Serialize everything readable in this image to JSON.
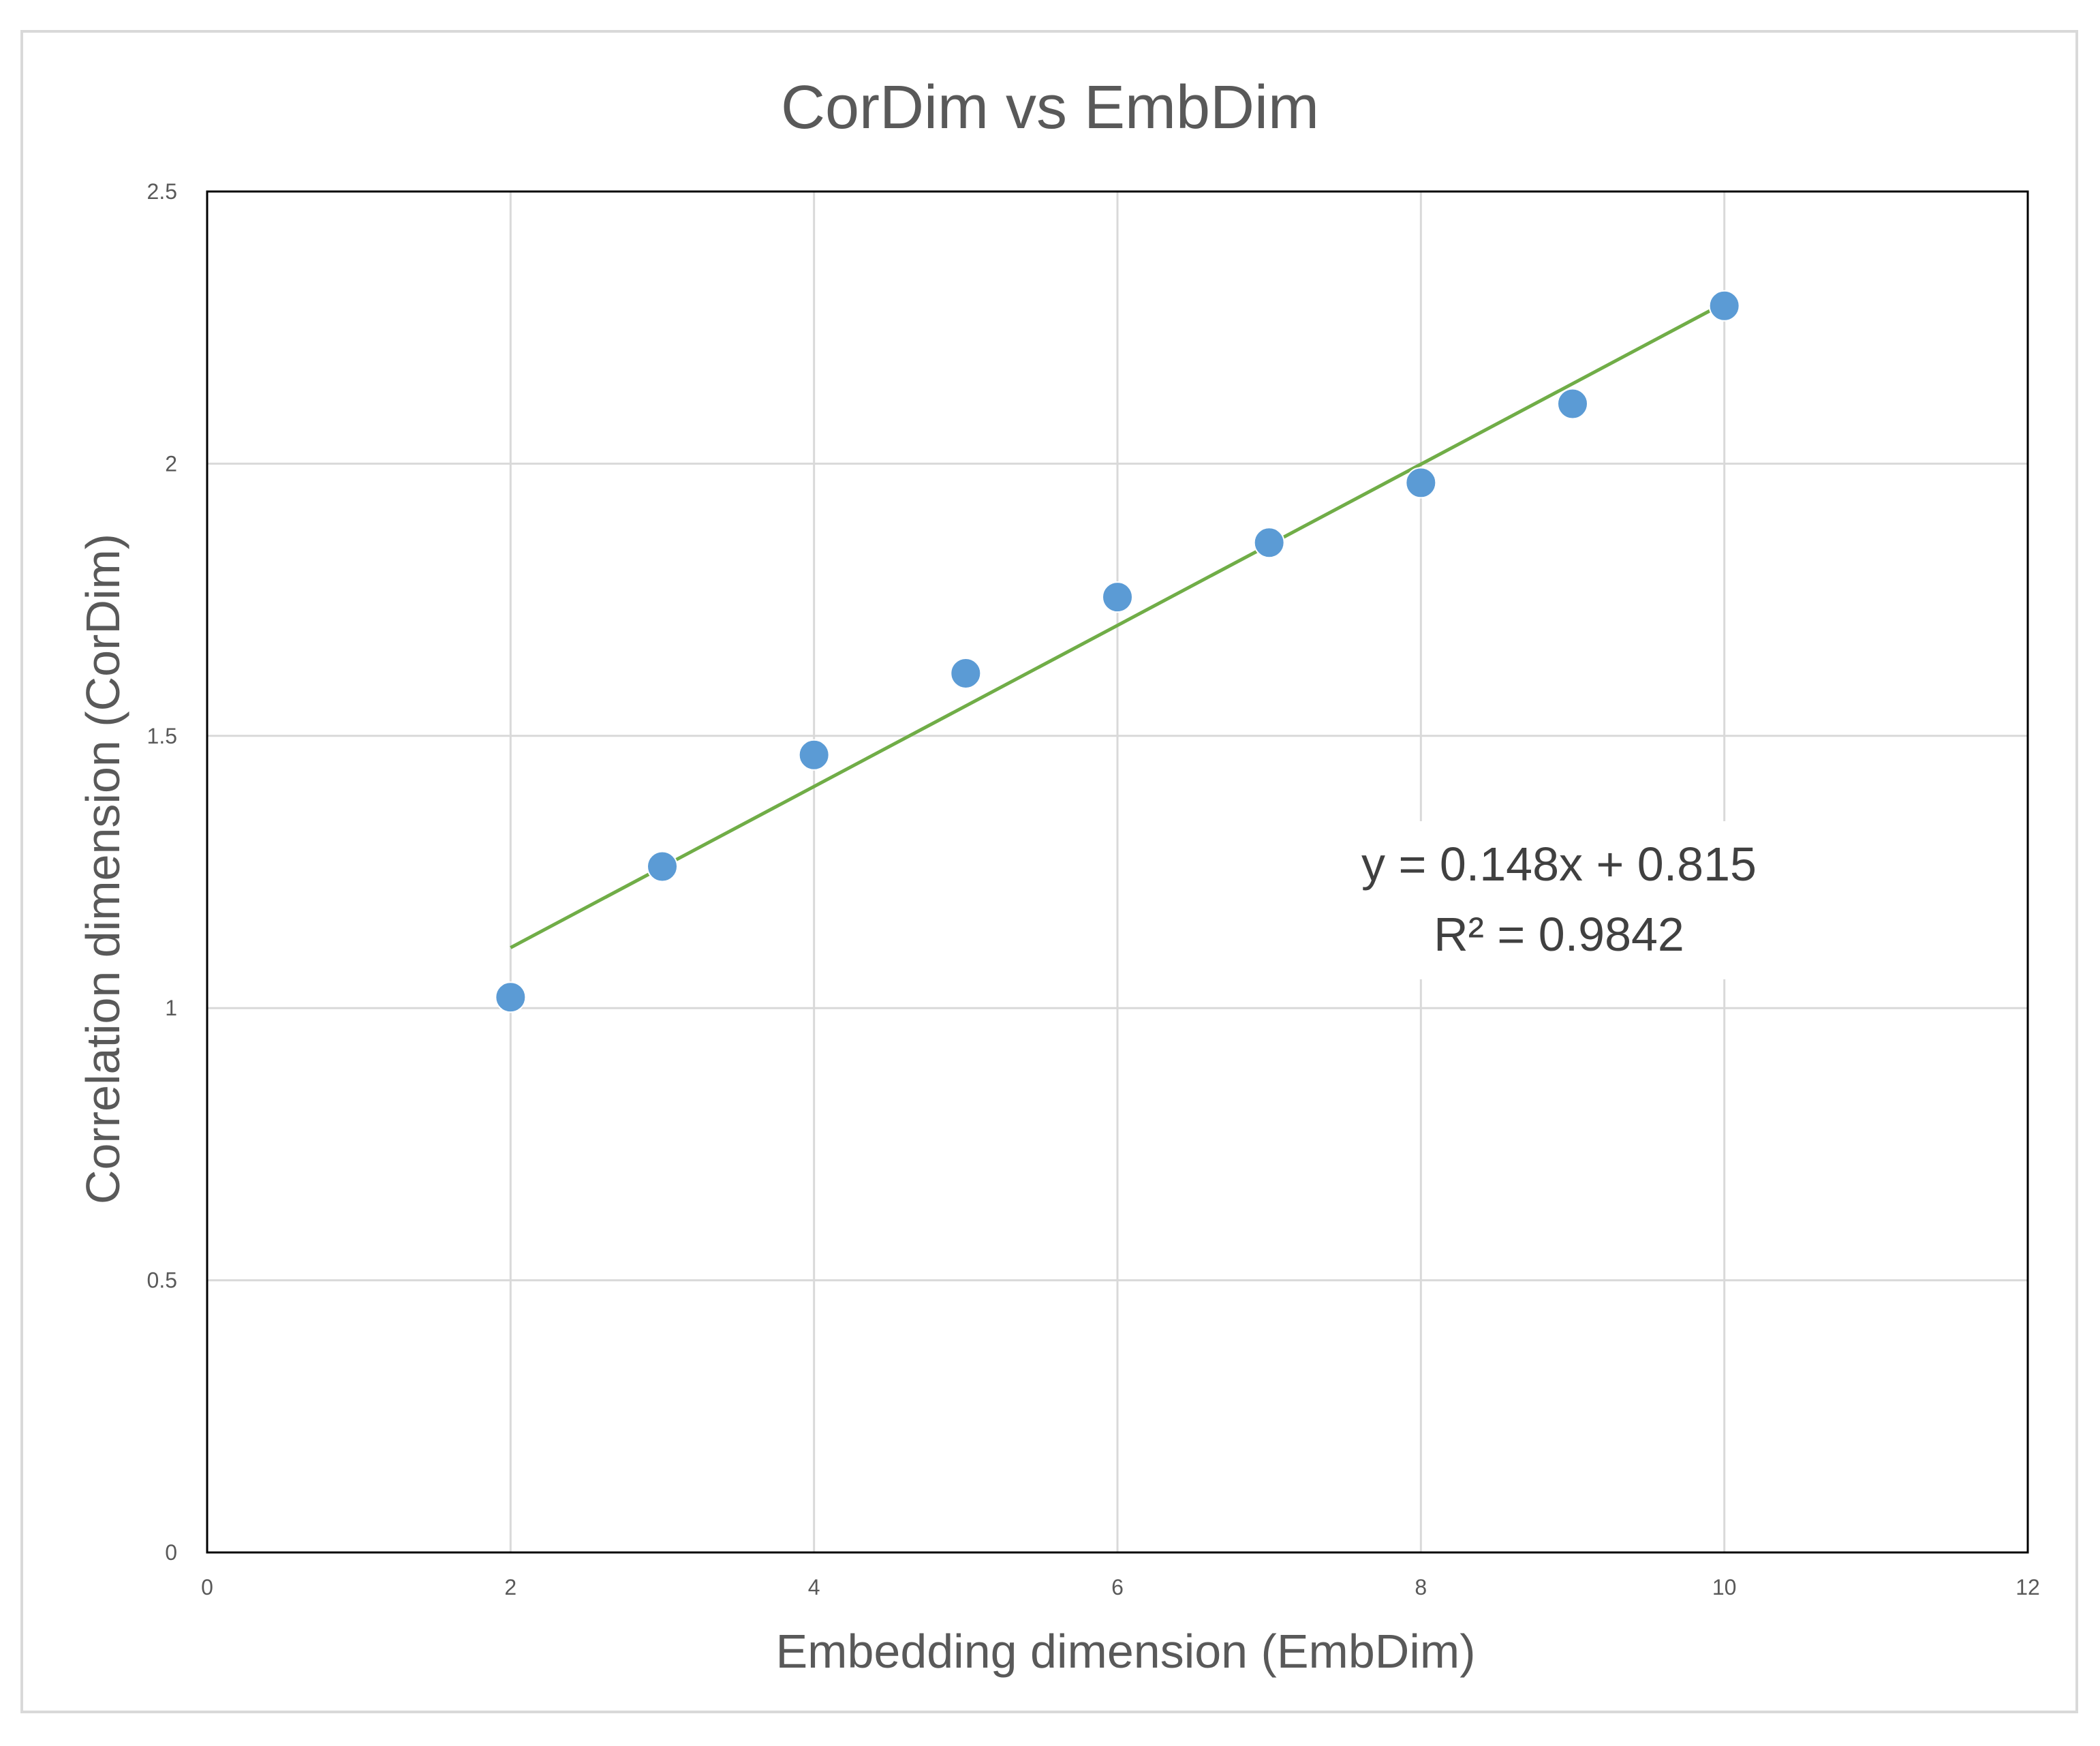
{
  "chart_data": {
    "type": "scatter",
    "title": "CorDim vs EmbDim",
    "xlabel": "Embedding dimension (EmbDim)",
    "ylabel": "Correlation dimension (CorDim)",
    "xlim": [
      0,
      12
    ],
    "ylim": [
      0,
      2.5
    ],
    "x_ticks": [
      "0",
      "2",
      "4",
      "6",
      "8",
      "10",
      "12"
    ],
    "y_ticks": [
      "0",
      "0.5",
      "1",
      "1.5",
      "2",
      "2.5"
    ],
    "grid": true,
    "legend": "none",
    "series": [
      {
        "x": [
          2,
          3,
          4,
          5,
          6,
          7,
          8,
          9,
          10
        ],
        "y": [
          1.02,
          1.26,
          1.465,
          1.615,
          1.755,
          1.855,
          1.965,
          2.11,
          2.29
        ],
        "color": "#5b9bd5"
      }
    ],
    "trendline": {
      "type": "linear",
      "slope": 0.148,
      "intercept": 0.815,
      "x_range": [
        2,
        10
      ],
      "color": "#70ad47",
      "equation": "y = 0.148x + 0.815",
      "r_squared": "R² = 0.9842"
    }
  }
}
